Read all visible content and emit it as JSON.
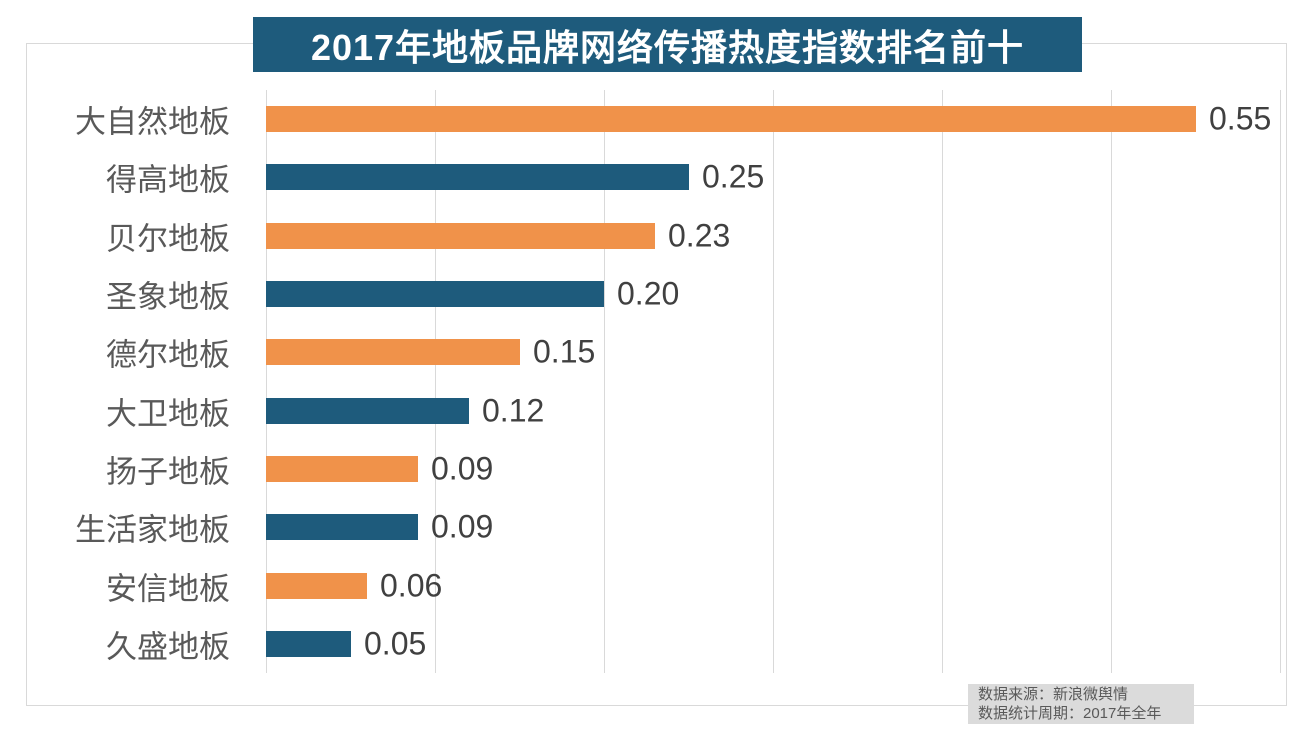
{
  "chart_data": {
    "type": "bar",
    "orientation": "horizontal",
    "title": "2017年地板品牌网络传播热度指数排名前十",
    "categories": [
      "大自然地板",
      "得高地板",
      "贝尔地板",
      "圣象地板",
      "德尔地板",
      "大卫地板",
      "扬子地板",
      "生活家地板",
      "安信地板",
      "久盛地板"
    ],
    "values": [
      0.55,
      0.25,
      0.23,
      0.2,
      0.15,
      0.12,
      0.09,
      0.09,
      0.06,
      0.05
    ],
    "value_labels": [
      "0.55",
      "0.25",
      "0.23",
      "0.20",
      "0.15",
      "0.12",
      "0.09",
      "0.09",
      "0.06",
      "0.05"
    ],
    "bar_colors": [
      "#F0924A",
      "#1E5B7C",
      "#F0924A",
      "#1E5B7C",
      "#F0924A",
      "#1E5B7C",
      "#F0924A",
      "#1E5B7C",
      "#F0924A",
      "#1E5B7C"
    ],
    "xlabel": "",
    "ylabel": "",
    "xlim": [
      0,
      0.6
    ],
    "gridline_step": 0.1,
    "grid": "vertical-gridlines-only",
    "legend": "none",
    "data_labels": "outside-end"
  },
  "colors": {
    "orange_series": "#F0924A",
    "blue_series": "#1E5B7C",
    "title_background": "#1E5B7C",
    "title_text": "#FFFFFF",
    "gridline": "#D9D9D9",
    "category_label": "#595959",
    "value_label": "#404040",
    "source_background": "#DBDBDB",
    "source_text": "#595959"
  },
  "source": {
    "line1": "数据来源：新浪微舆情",
    "line2": "数据统计周期：2017年全年"
  }
}
